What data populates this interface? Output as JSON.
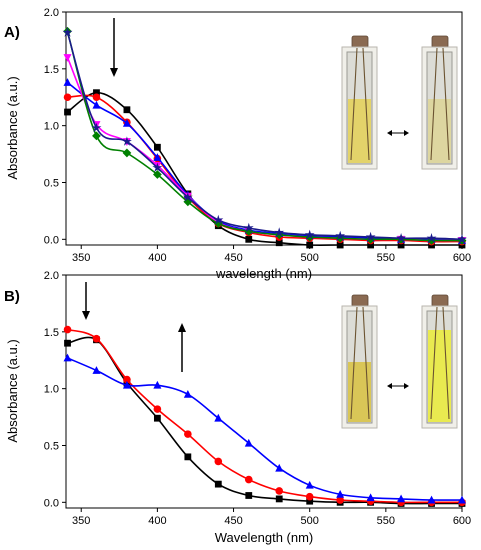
{
  "chart_data": [
    {
      "panel_label": "A)",
      "type": "line",
      "xlabel": "wavelength (nm)",
      "ylabel": "Absorbance (a.u.)",
      "xlim": [
        340,
        600
      ],
      "ylim": [
        -0.05,
        2.0
      ],
      "xticks": [
        350,
        400,
        450,
        500,
        550,
        600
      ],
      "yticks": [
        0.0,
        0.5,
        1.0,
        1.5,
        2.0
      ],
      "ytick_labels": [
        "0.0",
        "0.5",
        "1.0",
        "1.5",
        "2.0"
      ],
      "arrow": "down",
      "series": [
        {
          "color": "#000000",
          "marker": "square",
          "x": [
            341,
            360,
            380,
            400,
            420,
            440,
            460,
            480,
            500,
            520,
            540,
            560,
            580,
            600
          ],
          "y": [
            1.12,
            1.29,
            1.14,
            0.81,
            0.4,
            0.12,
            0.0,
            -0.03,
            -0.05,
            -0.05,
            -0.05,
            -0.05,
            -0.05,
            -0.05
          ]
        },
        {
          "color": "#ff0000",
          "marker": "circle",
          "x": [
            341,
            360,
            380,
            400,
            420,
            440,
            460,
            480,
            500,
            520,
            540,
            560,
            580,
            600
          ],
          "y": [
            1.25,
            1.25,
            1.03,
            0.71,
            0.37,
            0.14,
            0.06,
            0.02,
            0.01,
            0.0,
            -0.01,
            -0.01,
            -0.02,
            -0.02
          ]
        },
        {
          "color": "#0000ff",
          "marker": "triangle-up",
          "x": [
            341,
            360,
            380,
            400,
            420,
            440,
            460,
            480,
            500,
            520,
            540,
            560,
            580,
            600
          ],
          "y": [
            1.38,
            1.18,
            1.02,
            0.72,
            0.39,
            0.16,
            0.08,
            0.05,
            0.03,
            0.02,
            0.01,
            0.0,
            0.0,
            -0.01
          ]
        },
        {
          "color": "#ff00ff",
          "marker": "triangle-down",
          "x": [
            341,
            360,
            380,
            400,
            420,
            440,
            460,
            480,
            500,
            520,
            540,
            560,
            580,
            600
          ],
          "y": [
            1.6,
            1.01,
            0.86,
            0.65,
            0.38,
            0.15,
            0.07,
            0.04,
            0.02,
            0.01,
            0.0,
            0.0,
            -0.01,
            -0.01
          ]
        },
        {
          "color": "#008000",
          "marker": "diamond",
          "x": [
            341,
            360,
            380,
            400,
            420,
            440,
            460,
            480,
            500,
            520,
            540,
            560,
            580,
            600
          ],
          "y": [
            1.83,
            0.91,
            0.76,
            0.57,
            0.33,
            0.14,
            0.07,
            0.04,
            0.02,
            0.01,
            0.0,
            0.0,
            -0.01,
            -0.01
          ]
        },
        {
          "color": "#1a1a8c",
          "marker": "star",
          "x": [
            341,
            360,
            380,
            400,
            420,
            440,
            460,
            480,
            500,
            520,
            540,
            560,
            580,
            600
          ],
          "y": [
            1.82,
            0.98,
            0.86,
            0.63,
            0.37,
            0.17,
            0.1,
            0.06,
            0.04,
            0.03,
            0.02,
            0.01,
            0.01,
            0.0
          ]
        }
      ]
    },
    {
      "panel_label": "B)",
      "type": "line",
      "xlabel": "Wavelength (nm)",
      "ylabel": "Absorbance (a.u.)",
      "xlim": [
        340,
        600
      ],
      "ylim": [
        -0.05,
        2.0
      ],
      "xticks": [
        350,
        400,
        450,
        500,
        550,
        600
      ],
      "yticks": [
        0.0,
        0.5,
        1.0,
        1.5,
        2.0
      ],
      "ytick_labels": [
        "0.0",
        "0.5",
        "1.0",
        "1.5",
        "2.0"
      ],
      "arrows": [
        "down",
        "up"
      ],
      "series": [
        {
          "color": "#000000",
          "marker": "square",
          "x": [
            341,
            360,
            380,
            400,
            420,
            440,
            460,
            480,
            500,
            520,
            540,
            560,
            580,
            600
          ],
          "y": [
            1.4,
            1.43,
            1.05,
            0.74,
            0.4,
            0.16,
            0.06,
            0.03,
            0.01,
            0.0,
            0.0,
            -0.01,
            -0.01,
            -0.01
          ]
        },
        {
          "color": "#ff0000",
          "marker": "circle",
          "x": [
            341,
            360,
            380,
            400,
            420,
            440,
            460,
            480,
            500,
            520,
            540,
            560,
            580,
            600
          ],
          "y": [
            1.52,
            1.44,
            1.08,
            0.82,
            0.6,
            0.36,
            0.2,
            0.1,
            0.05,
            0.02,
            0.01,
            0.0,
            0.0,
            0.0
          ]
        },
        {
          "color": "#0000ff",
          "marker": "triangle-up",
          "x": [
            341,
            360,
            380,
            400,
            420,
            440,
            460,
            480,
            500,
            520,
            540,
            560,
            580,
            600
          ],
          "y": [
            1.27,
            1.16,
            1.03,
            1.03,
            0.95,
            0.74,
            0.52,
            0.3,
            0.15,
            0.07,
            0.04,
            0.03,
            0.02,
            0.02
          ]
        }
      ]
    }
  ],
  "colors": {
    "solution_a_before": "#e3d36a",
    "solution_a_after": "#ddd6a0",
    "solution_b_before": "#d9c657",
    "solution_b_after": "#e9ea50"
  },
  "icons": {
    "exchange": "double-headed-arrow-icon"
  }
}
